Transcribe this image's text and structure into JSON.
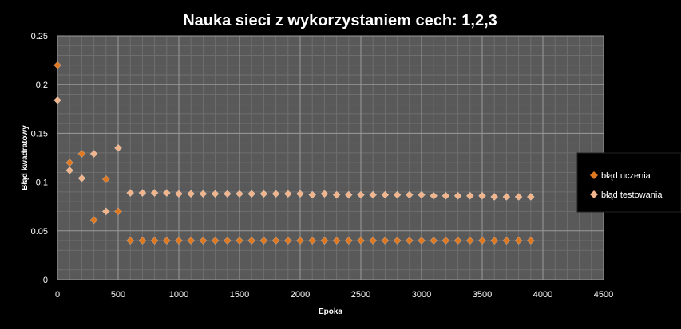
{
  "chart_data": {
    "type": "scatter",
    "title": "Nauka sieci z wykorzystaniem cech: 1,2,3",
    "xlabel": "Epoka",
    "ylabel": "Błąd kwadratowy",
    "xlim": [
      0,
      4500
    ],
    "ylim": [
      0,
      0.25
    ],
    "xticks": [
      0,
      500,
      1000,
      1500,
      2000,
      2500,
      3000,
      3500,
      4000,
      4500
    ],
    "yticks": [
      0,
      0.05,
      0.1,
      0.15,
      0.2,
      0.25
    ],
    "xtick_labels": [
      "0",
      "500",
      "1000",
      "1500",
      "2000",
      "2500",
      "3000",
      "3500",
      "4000",
      "4500"
    ],
    "ytick_labels": [
      "0",
      "0.05",
      "0.1",
      "0.15",
      "0.2",
      "0.25"
    ],
    "grid": true,
    "legend_position": "right",
    "series": [
      {
        "name": "błąd uczenia",
        "color": "#e07820",
        "x": [
          0,
          100,
          200,
          300,
          400,
          500,
          600,
          700,
          800,
          900,
          1000,
          1100,
          1200,
          1300,
          1400,
          1500,
          1600,
          1700,
          1800,
          1900,
          2000,
          2100,
          2200,
          2300,
          2400,
          2500,
          2600,
          2700,
          2800,
          2900,
          3000,
          3100,
          3200,
          3300,
          3400,
          3500,
          3600,
          3700,
          3800,
          3900
        ],
        "y": [
          0.22,
          0.12,
          0.129,
          0.061,
          0.103,
          0.07,
          0.04,
          0.04,
          0.04,
          0.04,
          0.04,
          0.04,
          0.04,
          0.04,
          0.04,
          0.04,
          0.04,
          0.04,
          0.04,
          0.04,
          0.04,
          0.04,
          0.04,
          0.04,
          0.04,
          0.04,
          0.04,
          0.04,
          0.04,
          0.04,
          0.04,
          0.04,
          0.04,
          0.04,
          0.04,
          0.04,
          0.04,
          0.04,
          0.04,
          0.04
        ]
      },
      {
        "name": "błąd testowania",
        "color": "#f2b48a",
        "x": [
          0,
          100,
          200,
          300,
          400,
          500,
          600,
          700,
          800,
          900,
          1000,
          1100,
          1200,
          1300,
          1400,
          1500,
          1600,
          1700,
          1800,
          1900,
          2000,
          2100,
          2200,
          2300,
          2400,
          2500,
          2600,
          2700,
          2800,
          2900,
          3000,
          3100,
          3200,
          3300,
          3400,
          3500,
          3600,
          3700,
          3800,
          3900
        ],
        "y": [
          0.184,
          0.112,
          0.104,
          0.129,
          0.07,
          0.135,
          0.089,
          0.089,
          0.089,
          0.089,
          0.088,
          0.088,
          0.088,
          0.088,
          0.088,
          0.088,
          0.088,
          0.088,
          0.088,
          0.088,
          0.088,
          0.087,
          0.088,
          0.087,
          0.087,
          0.087,
          0.087,
          0.087,
          0.087,
          0.087,
          0.087,
          0.086,
          0.086,
          0.086,
          0.086,
          0.086,
          0.085,
          0.085,
          0.085,
          0.085
        ]
      }
    ]
  }
}
